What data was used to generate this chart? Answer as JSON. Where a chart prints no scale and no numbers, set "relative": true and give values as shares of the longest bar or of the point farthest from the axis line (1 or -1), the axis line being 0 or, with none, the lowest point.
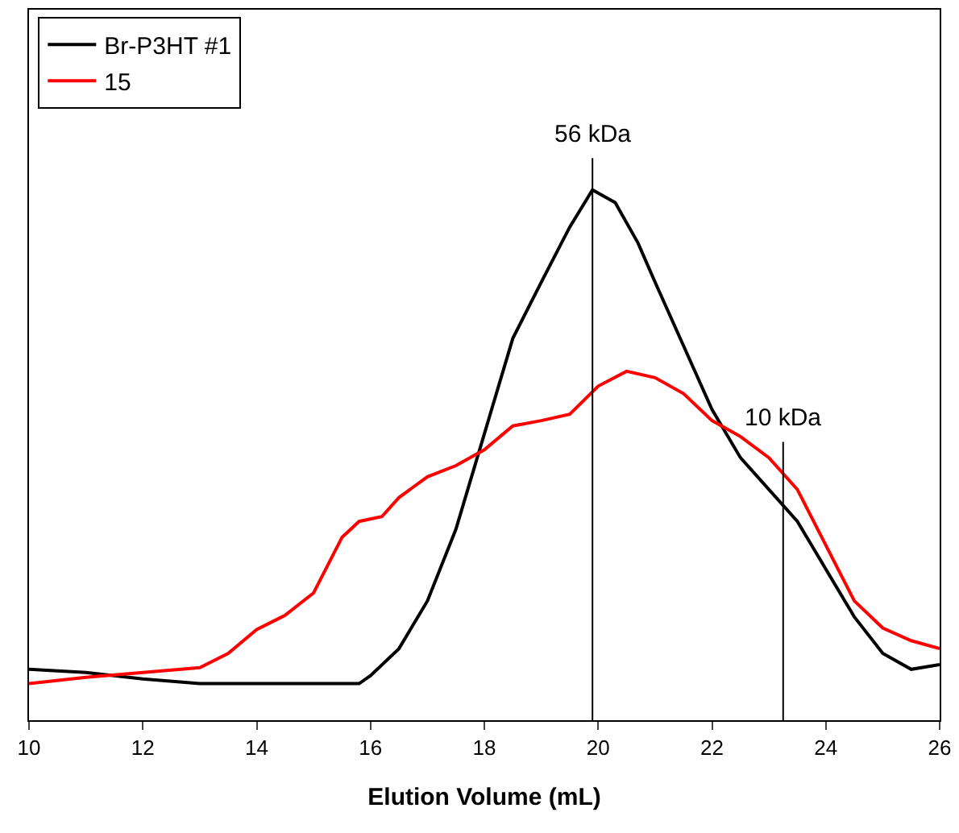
{
  "chart_data": {
    "type": "line",
    "relative": true,
    "xlabel": "Elution Volume (mL)",
    "xlim": [
      10,
      26
    ],
    "xticks": [
      10,
      12,
      14,
      16,
      18,
      20,
      22,
      24,
      26
    ],
    "legend": "top left",
    "marker": "none",
    "line_style": "solid",
    "series": [
      {
        "name": "Br-P3HT #1",
        "color": "#000000",
        "x": [
          10,
          11,
          12,
          13,
          14,
          15,
          15.8,
          16,
          16.5,
          17,
          17.5,
          18,
          18.5,
          19,
          19.5,
          19.9,
          20.3,
          20.7,
          21,
          21.5,
          22,
          22.5,
          23,
          23.5,
          24,
          24.5,
          25,
          25.5,
          26
        ],
        "values": [
          0.096,
          0.09,
          0.078,
          0.069,
          0.069,
          0.069,
          0.069,
          0.084,
          0.135,
          0.225,
          0.36,
          0.54,
          0.72,
          0.826,
          0.93,
          1.0,
          0.976,
          0.9,
          0.826,
          0.706,
          0.586,
          0.495,
          0.435,
          0.375,
          0.285,
          0.195,
          0.126,
          0.096,
          0.105
        ]
      },
      {
        "name": "15",
        "color": "#ff0000",
        "x": [
          10,
          11,
          12,
          13,
          13.5,
          14,
          14.5,
          15,
          15.5,
          15.8,
          16.2,
          16.5,
          17,
          17.5,
          18,
          18.5,
          19,
          19.5,
          20,
          20.5,
          21,
          21.5,
          22,
          22.5,
          23,
          23.5,
          24,
          24.5,
          25,
          25.5,
          26
        ],
        "values": [
          0.069,
          0.081,
          0.09,
          0.099,
          0.126,
          0.171,
          0.198,
          0.24,
          0.345,
          0.375,
          0.384,
          0.42,
          0.459,
          0.48,
          0.51,
          0.555,
          0.565,
          0.577,
          0.63,
          0.658,
          0.646,
          0.616,
          0.565,
          0.535,
          0.495,
          0.435,
          0.33,
          0.225,
          0.174,
          0.15,
          0.135
        ]
      }
    ],
    "ref_lines": [
      {
        "axis": "x",
        "value": 19.9,
        "label": "56 kDa",
        "color": "#000000"
      },
      {
        "axis": "x",
        "value": 23.25,
        "label": "10 kDa",
        "color": "#000000"
      }
    ]
  }
}
